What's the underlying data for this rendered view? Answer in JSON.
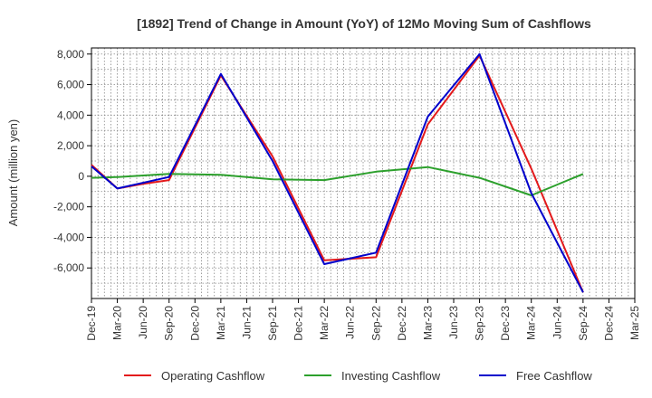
{
  "chart_data": {
    "type": "line",
    "title": "[1892]  Trend of Change in Amount (YoY) of 12Mo Moving Sum of Cashflows",
    "xlabel": "",
    "ylabel": "Amount (million yen)",
    "ylim": [
      -8000,
      8400
    ],
    "yticks": [
      8000,
      6000,
      4000,
      2000,
      0,
      -2000,
      -4000,
      -6000
    ],
    "ytick_labels": [
      "8,000",
      "6,000",
      "4,000",
      "2,000",
      "0",
      "-2,000",
      "-4,000",
      "-6,000"
    ],
    "categories": [
      "Dec-19",
      "Mar-20",
      "Jun-20",
      "Sep-20",
      "Dec-20",
      "Mar-21",
      "Jun-21",
      "Sep-21",
      "Dec-21",
      "Mar-22",
      "Jun-22",
      "Sep-22",
      "Dec-22",
      "Mar-23",
      "Jun-23",
      "Sep-23",
      "Dec-23",
      "Mar-24",
      "Jun-24",
      "Sep-24",
      "Dec-24",
      "Mar-25"
    ],
    "grid": true,
    "legend": "bottom",
    "series": [
      {
        "name": "Operating Cashflow",
        "color": "#e31a1c",
        "values": [
          750,
          -800,
          -500,
          -250,
          null,
          6600,
          null,
          1300,
          null,
          -5500,
          null,
          -5300,
          null,
          3400,
          null,
          7900,
          null,
          500,
          null,
          -7600,
          null,
          null
        ]
      },
      {
        "name": "Investing Cashflow",
        "color": "#2ca02c",
        "values": [
          -100,
          -50,
          null,
          150,
          null,
          100,
          null,
          -200,
          null,
          -250,
          null,
          300,
          null,
          600,
          null,
          -100,
          null,
          -1250,
          null,
          150,
          null,
          null
        ]
      },
      {
        "name": "Free Cashflow",
        "color": "#0000cc",
        "values": [
          650,
          -800,
          null,
          -50,
          null,
          6700,
          null,
          1000,
          null,
          -5750,
          null,
          -5000,
          null,
          3900,
          null,
          8000,
          null,
          -1100,
          null,
          -7600,
          null,
          null
        ]
      }
    ]
  }
}
